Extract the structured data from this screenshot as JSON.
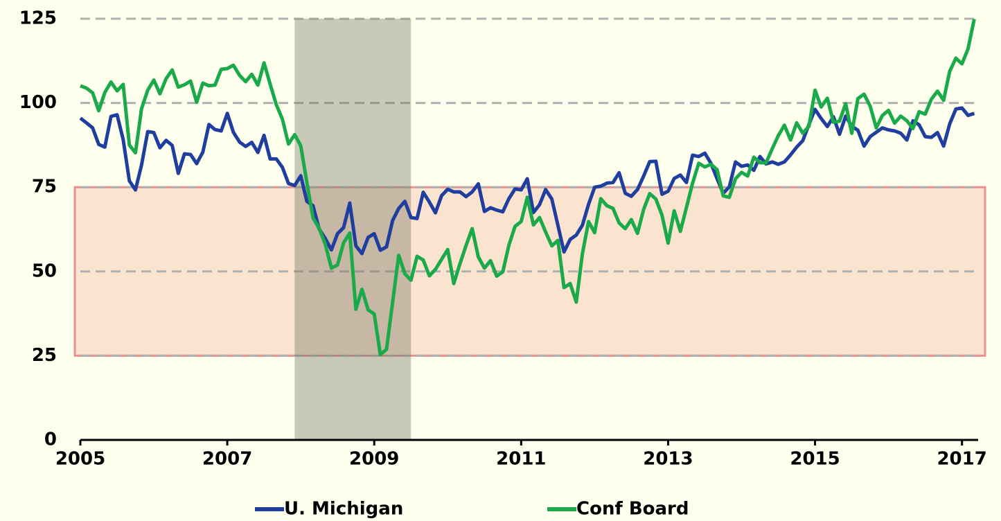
{
  "chart_data": {
    "type": "line",
    "xlim": [
      2005,
      2017.22
    ],
    "xticks": [
      2005,
      2007,
      2009,
      2011,
      2013,
      2015,
      2017
    ],
    "ylim": [
      0,
      125
    ],
    "yticks": [
      0,
      25,
      50,
      75,
      100,
      125
    ],
    "grid": true,
    "recession_span": [
      2007.917,
      2009.5
    ],
    "band": [
      25,
      75
    ],
    "x": [
      2005,
      2005.083,
      2005.167,
      2005.25,
      2005.333,
      2005.417,
      2005.5,
      2005.583,
      2005.667,
      2005.75,
      2005.833,
      2005.917,
      2006,
      2006.083,
      2006.167,
      2006.25,
      2006.333,
      2006.417,
      2006.5,
      2006.583,
      2006.667,
      2006.75,
      2006.833,
      2006.917,
      2007,
      2007.083,
      2007.167,
      2007.25,
      2007.333,
      2007.417,
      2007.5,
      2007.583,
      2007.667,
      2007.75,
      2007.833,
      2007.917,
      2008,
      2008.083,
      2008.167,
      2008.25,
      2008.333,
      2008.417,
      2008.5,
      2008.583,
      2008.667,
      2008.75,
      2008.833,
      2008.917,
      2009,
      2009.083,
      2009.167,
      2009.25,
      2009.333,
      2009.417,
      2009.5,
      2009.583,
      2009.667,
      2009.75,
      2009.833,
      2009.917,
      2010,
      2010.083,
      2010.167,
      2010.25,
      2010.333,
      2010.417,
      2010.5,
      2010.583,
      2010.667,
      2010.75,
      2010.833,
      2010.917,
      2011,
      2011.083,
      2011.167,
      2011.25,
      2011.333,
      2011.417,
      2011.5,
      2011.583,
      2011.667,
      2011.75,
      2011.833,
      2011.917,
      2012,
      2012.083,
      2012.167,
      2012.25,
      2012.333,
      2012.417,
      2012.5,
      2012.583,
      2012.667,
      2012.75,
      2012.833,
      2012.917,
      2013,
      2013.083,
      2013.167,
      2013.25,
      2013.333,
      2013.417,
      2013.5,
      2013.583,
      2013.667,
      2013.75,
      2013.833,
      2013.917,
      2014,
      2014.083,
      2014.167,
      2014.25,
      2014.333,
      2014.417,
      2014.5,
      2014.583,
      2014.667,
      2014.75,
      2014.833,
      2014.917,
      2015,
      2015.083,
      2015.167,
      2015.25,
      2015.333,
      2015.417,
      2015.5,
      2015.583,
      2015.667,
      2015.75,
      2015.833,
      2015.917,
      2016,
      2016.083,
      2016.167,
      2016.25,
      2016.333,
      2016.417,
      2016.5,
      2016.583,
      2016.667,
      2016.75,
      2016.833,
      2016.917,
      2017,
      2017.083,
      2017.167
    ],
    "series": [
      {
        "name": "U. Michigan",
        "color": "#1f3e9e",
        "values": [
          95.5,
          94.1,
          92.6,
          87.7,
          86.9,
          96.0,
          96.5,
          89.1,
          76.9,
          74.2,
          81.6,
          91.5,
          91.2,
          86.7,
          88.9,
          87.4,
          79.1,
          84.9,
          84.7,
          82.0,
          85.4,
          93.6,
          92.1,
          91.7,
          96.9,
          91.3,
          88.4,
          87.1,
          88.3,
          85.3,
          90.4,
          83.4,
          83.4,
          80.9,
          76.1,
          75.5,
          78.4,
          70.8,
          69.5,
          62.6,
          59.8,
          56.4,
          61.2,
          63.0,
          70.3,
          57.6,
          55.3,
          60.1,
          61.2,
          56.3,
          57.3,
          65.1,
          68.7,
          70.8,
          66.0,
          65.7,
          73.5,
          70.6,
          67.4,
          72.5,
          74.4,
          73.6,
          73.6,
          72.2,
          73.6,
          76.0,
          67.8,
          68.9,
          68.2,
          67.7,
          71.6,
          74.5,
          74.2,
          77.5,
          67.5,
          69.8,
          74.3,
          71.5,
          63.7,
          55.8,
          59.5,
          60.8,
          63.7,
          69.9,
          75.0,
          75.3,
          76.2,
          76.4,
          79.3,
          73.2,
          72.3,
          74.3,
          78.3,
          82.6,
          82.7,
          72.9,
          73.8,
          77.6,
          78.6,
          76.4,
          84.5,
          84.1,
          85.1,
          82.1,
          77.5,
          73.2,
          75.1,
          82.5,
          81.2,
          81.6,
          80.0,
          84.1,
          81.9,
          82.5,
          81.8,
          82.5,
          84.6,
          86.9,
          88.8,
          93.6,
          98.1,
          95.4,
          93.0,
          95.9,
          90.7,
          96.1,
          93.1,
          91.9,
          87.2,
          90.0,
          91.3,
          92.6,
          92.0,
          91.7,
          91.0,
          89.0,
          94.7,
          93.5,
          90.0,
          89.8,
          91.2,
          87.2,
          93.8,
          98.2,
          98.5,
          96.3,
          96.9
        ]
      },
      {
        "name": "Conf Board",
        "color": "#1aaa4a",
        "values": [
          105.1,
          104.4,
          103.0,
          97.7,
          103.1,
          106.2,
          103.6,
          105.5,
          87.5,
          85.2,
          98.3,
          103.8,
          106.8,
          102.7,
          107.2,
          109.8,
          104.7,
          105.4,
          106.5,
          100.2,
          105.9,
          105.1,
          105.3,
          110.0,
          110.2,
          111.2,
          108.2,
          106.3,
          108.5,
          105.3,
          111.9,
          105.6,
          99.5,
          95.2,
          87.8,
          90.6,
          87.3,
          76.4,
          65.9,
          62.8,
          58.1,
          51.0,
          51.9,
          58.5,
          61.4,
          38.8,
          44.7,
          38.6,
          37.4,
          25.3,
          26.9,
          40.8,
          54.8,
          49.3,
          47.4,
          54.5,
          53.4,
          48.7,
          50.6,
          53.6,
          56.5,
          46.4,
          52.3,
          57.7,
          62.7,
          54.3,
          51.0,
          53.2,
          48.6,
          49.9,
          57.8,
          63.4,
          64.8,
          72.0,
          63.8,
          66.0,
          61.7,
          57.6,
          59.2,
          45.2,
          46.4,
          40.9,
          55.2,
          64.8,
          61.5,
          71.6,
          69.5,
          68.7,
          64.4,
          62.7,
          65.4,
          61.3,
          68.4,
          73.1,
          71.5,
          66.7,
          58.4,
          68.0,
          61.9,
          69.0,
          76.2,
          82.1,
          81.0,
          81.8,
          80.2,
          72.4,
          72.0,
          77.5,
          79.4,
          78.3,
          83.9,
          82.3,
          82.2,
          86.4,
          90.3,
          93.4,
          89.0,
          94.1,
          91.0,
          93.1,
          103.8,
          98.8,
          101.4,
          94.3,
          94.6,
          99.8,
          91.0,
          101.3,
          102.6,
          99.1,
          92.6,
          96.3,
          97.8,
          94.0,
          96.1,
          94.7,
          92.4,
          97.4,
          96.7,
          101.1,
          103.5,
          100.8,
          109.4,
          113.3,
          111.6,
          116.1,
          124.9
        ]
      }
    ]
  }
}
